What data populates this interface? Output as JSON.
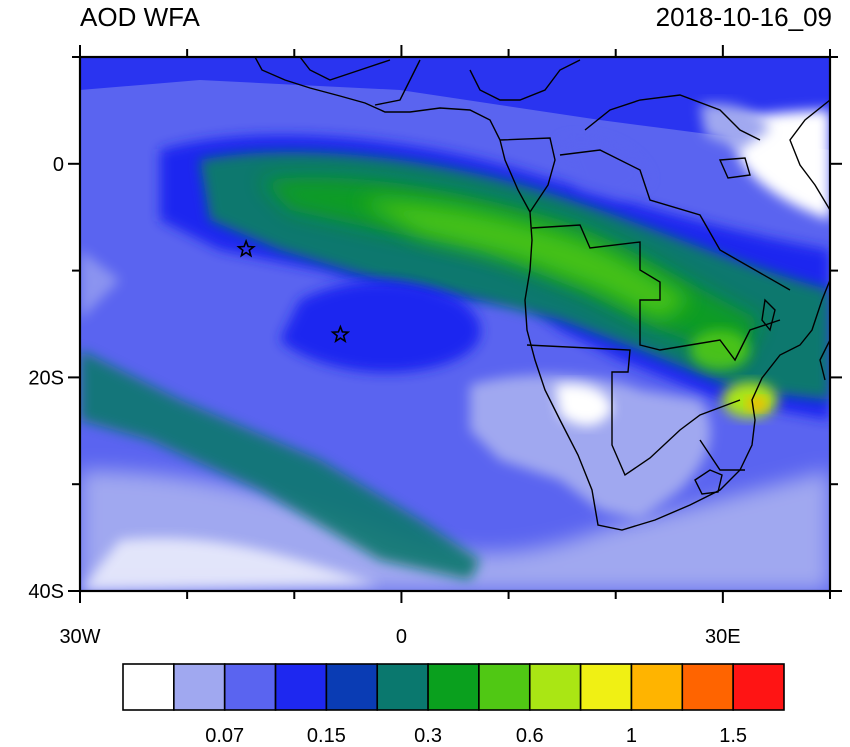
{
  "title_left": "AOD WFA",
  "title_right": "2018-10-16_09",
  "lat_labels": [
    {
      "text": "0",
      "lat": 0
    },
    {
      "text": "20S",
      "lat": -20
    },
    {
      "text": "40S",
      "lat": -40
    }
  ],
  "lon_labels": [
    {
      "text": "30W",
      "lon": -30
    },
    {
      "text": "0",
      "lon": 0
    },
    {
      "text": "30E",
      "lon": 30
    }
  ],
  "markers": [
    {
      "name": "star-marker-1",
      "lon": -14.5,
      "lat": -8
    },
    {
      "name": "star-marker-2",
      "lon": -5.7,
      "lat": -16
    }
  ],
  "colorbar": {
    "colors": [
      "#ffffff",
      "#a0a8f0",
      "#5a64f0",
      "#1e28f0",
      "#0a3cb4",
      "#0a786e",
      "#0aa01e",
      "#50c814",
      "#aae614",
      "#f0f014",
      "#ffb400",
      "#ff6400",
      "#ff1414"
    ],
    "labels": [
      {
        "text": "0.07",
        "boundary": 2
      },
      {
        "text": "0.15",
        "boundary": 4
      },
      {
        "text": "0.3",
        "boundary": 6
      },
      {
        "text": "0.6",
        "boundary": 8
      },
      {
        "text": "1",
        "boundary": 10
      },
      {
        "text": "1.5",
        "boundary": 12
      }
    ]
  }
}
